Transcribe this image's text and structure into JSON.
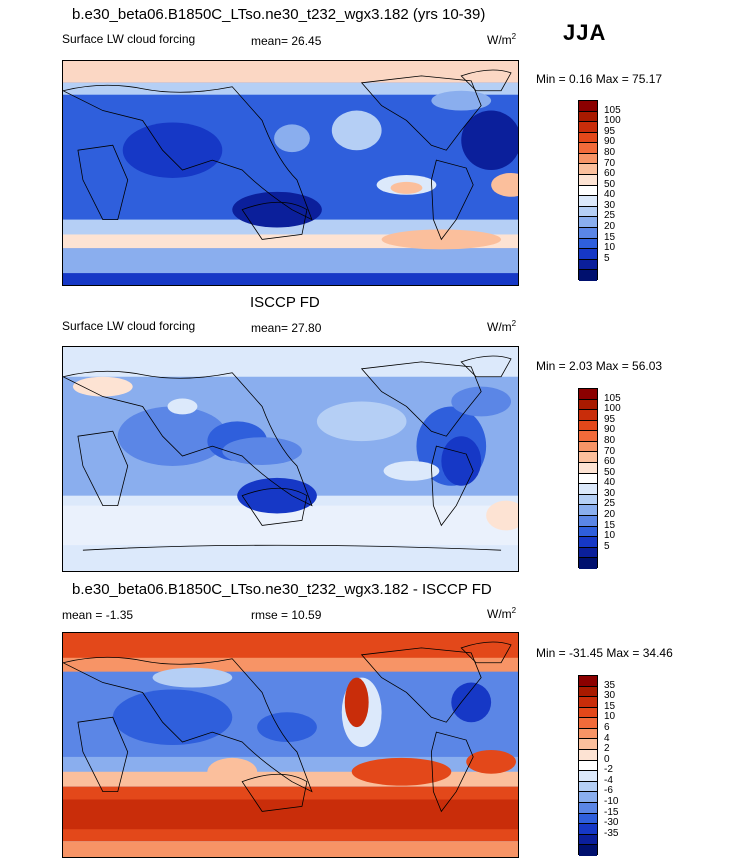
{
  "season": "JJA",
  "units_label": "W/m",
  "units_exp": "2",
  "panels": [
    {
      "title": "b.e30_beta06.B1850C_LTso.ne30_t232_wgx3.182 (yrs 10-39)",
      "left_label": "Surface LW cloud forcing",
      "center_label": "mean=  26.45",
      "minmax": "Min =   0.16 Max =  75.17",
      "colorbar": {
        "levels": [
          "105",
          "100",
          "95",
          "90",
          "80",
          "70",
          "60",
          "50",
          "40",
          "30",
          "25",
          "20",
          "15",
          "10",
          "5"
        ],
        "colors": [
          "#8b0000",
          "#a81a00",
          "#c92d0a",
          "#e3481a",
          "#f26b3a",
          "#f79466",
          "#fbbf9c",
          "#fde3d3",
          "#ffffff",
          "#dce9fb",
          "#b5cff5",
          "#8aaeee",
          "#5b86e6",
          "#2f5fdc",
          "#1638c6",
          "#0b1f9b",
          "#00106e"
        ]
      },
      "chart_data": {
        "type": "heatmap",
        "title": "b.e30_beta06.B1850C_LTso.ne30_t232_wgx3.182 (yrs 10-39)",
        "subtitle": "Surface LW cloud forcing",
        "mean": 26.45,
        "min": 0.16,
        "max": 75.17,
        "units": "W/m2",
        "contour_levels": [
          5,
          10,
          15,
          20,
          25,
          30,
          40,
          50,
          60,
          70,
          80,
          90,
          95,
          100,
          105
        ]
      }
    },
    {
      "title": "ISCCP FD",
      "left_label": "Surface LW cloud forcing",
      "center_label": "mean=  27.80",
      "minmax": "Min =   2.03 Max =  56.03",
      "colorbar": {
        "levels": [
          "105",
          "100",
          "95",
          "90",
          "80",
          "70",
          "60",
          "50",
          "40",
          "30",
          "25",
          "20",
          "15",
          "10",
          "5"
        ],
        "colors": [
          "#8b0000",
          "#a81a00",
          "#c92d0a",
          "#e3481a",
          "#f26b3a",
          "#f79466",
          "#fbbf9c",
          "#fde3d3",
          "#ffffff",
          "#dce9fb",
          "#b5cff5",
          "#8aaeee",
          "#5b86e6",
          "#2f5fdc",
          "#1638c6",
          "#0b1f9b",
          "#00106e"
        ]
      },
      "chart_data": {
        "type": "heatmap",
        "title": "ISCCP FD",
        "subtitle": "Surface LW cloud forcing",
        "mean": 27.8,
        "min": 2.03,
        "max": 56.03,
        "units": "W/m2",
        "contour_levels": [
          5,
          10,
          15,
          20,
          25,
          30,
          40,
          50,
          60,
          70,
          80,
          90,
          95,
          100,
          105
        ]
      }
    },
    {
      "title": "b.e30_beta06.B1850C_LTso.ne30_t232_wgx3.182 - ISCCP FD",
      "left_label": "mean =  -1.35",
      "center_label": "rmse =  10.59",
      "minmax": "Min = -31.45 Max =  34.46",
      "colorbar": {
        "levels": [
          "35",
          "30",
          "15",
          "10",
          "6",
          "4",
          "2",
          "0",
          "-2",
          "-4",
          "-6",
          "-10",
          "-15",
          "-30",
          "-35"
        ],
        "colors": [
          "#8b0000",
          "#a81a00",
          "#c92d0a",
          "#e3481a",
          "#f26b3a",
          "#f79466",
          "#fbbf9c",
          "#fde3d3",
          "#ffffff",
          "#dce9fb",
          "#b5cff5",
          "#8aaeee",
          "#5b86e6",
          "#2f5fdc",
          "#1638c6",
          "#0b1f9b",
          "#00106e"
        ]
      },
      "chart_data": {
        "type": "heatmap",
        "title": "b.e30_beta06.B1850C_LTso.ne30_t232_wgx3.182 - ISCCP FD",
        "mean": -1.35,
        "rmse": 10.59,
        "min": -31.45,
        "max": 34.46,
        "units": "W/m2",
        "contour_levels": [
          -35,
          -30,
          -15,
          -10,
          -6,
          -4,
          -2,
          0,
          2,
          4,
          6,
          10,
          15,
          30,
          35
        ]
      }
    }
  ]
}
